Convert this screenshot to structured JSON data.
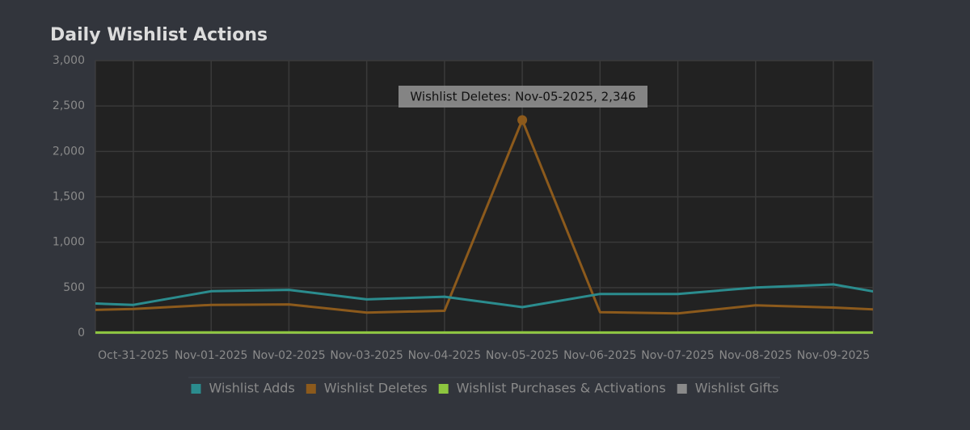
{
  "chart_data": {
    "type": "line",
    "title": "Daily Wishlist Actions",
    "categories": [
      null,
      "Oct-31-2025",
      "Nov-01-2025",
      "Nov-02-2025",
      "Nov-03-2025",
      "Nov-04-2025",
      "Nov-05-2025",
      "Nov-06-2025",
      "Nov-07-2025",
      "Nov-08-2025",
      "Nov-09-2025",
      null
    ],
    "series": [
      {
        "name": "Wishlist Adds",
        "color": "#2b8c8e",
        "values": [
          340,
          310,
          460,
          475,
          370,
          400,
          285,
          430,
          430,
          500,
          535,
          385
        ]
      },
      {
        "name": "Wishlist Deletes",
        "color": "#8c5a1c",
        "values": [
          245,
          265,
          310,
          315,
          225,
          245,
          2346,
          230,
          215,
          305,
          280,
          240
        ]
      },
      {
        "name": "Wishlist Purchases & Activations",
        "color": "#8dc63f",
        "values": [
          5,
          5,
          6,
          6,
          5,
          5,
          6,
          5,
          5,
          6,
          5,
          5
        ]
      },
      {
        "name": "Wishlist Gifts",
        "color": "#8a8a8a",
        "values": [
          1,
          1,
          1,
          1,
          1,
          1,
          1,
          1,
          1,
          1,
          1,
          1
        ]
      }
    ],
    "ylim": [
      0,
      3000
    ],
    "yticks": [
      0,
      500,
      {
        "value": 1000,
        "label": "1,000"
      },
      {
        "value": 1500,
        "label": "1,500"
      },
      {
        "value": 2000,
        "label": "2,000"
      },
      {
        "value": 2500,
        "label": "2,500"
      },
      {
        "value": 3000,
        "label": "3,000"
      }
    ],
    "grid": true,
    "legend": "bottom",
    "annotation": "Wishlist Deletes: Nov-05-2025, 2,346"
  }
}
